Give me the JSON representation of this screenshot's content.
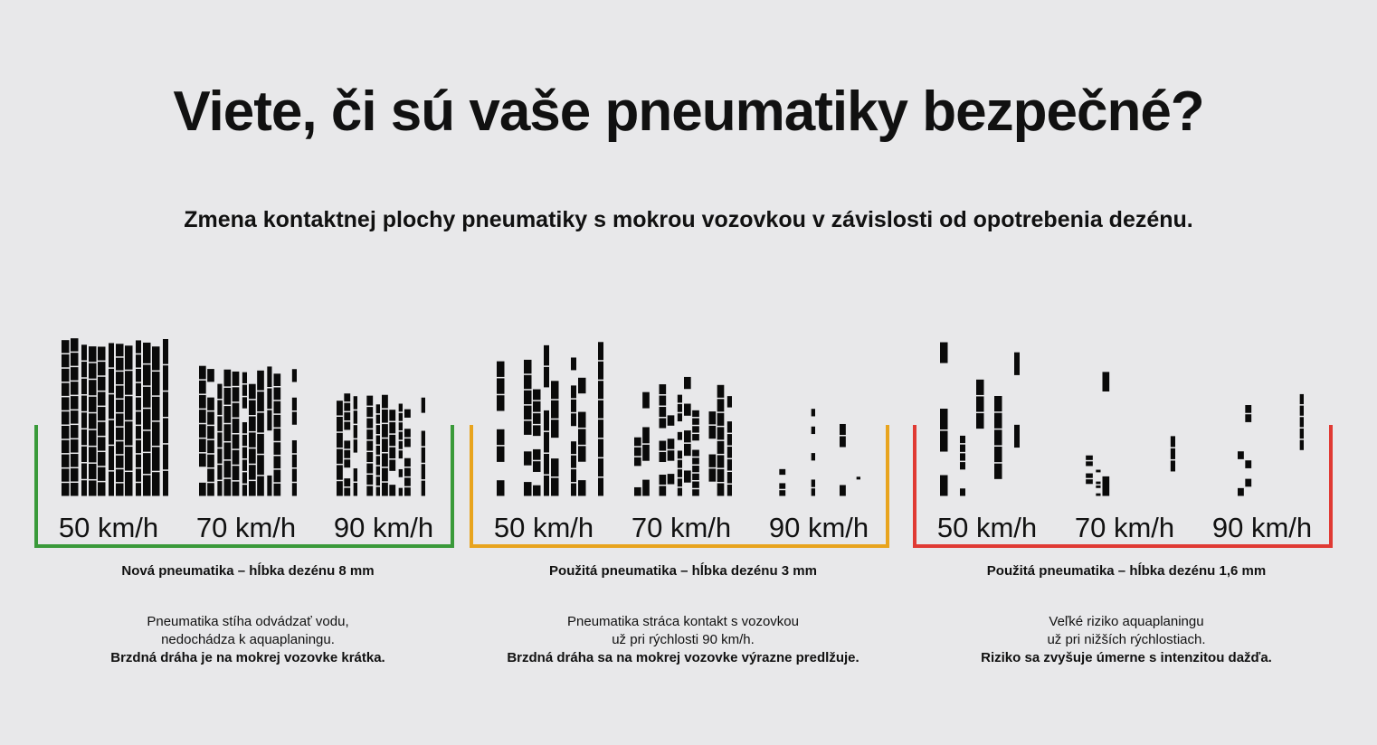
{
  "title": "Viete, či sú vaše pneumatiky bezpečné?",
  "subtitle": "Zmena kontaktnej plochy pneumatiky s mokrou vozovkou v závislosti od opotrebenia dezénu.",
  "panels": [
    {
      "color": "#3a9a3a",
      "wear_level": 0,
      "speeds": [
        "50 km/h",
        "70 km/h",
        "90 km/h"
      ],
      "caption": "Nová pneumatika – hĺbka dezénu 8 mm",
      "desc1": "Pneumatika stíha odvádzať vodu,",
      "desc2": "nedochádza k aquaplaningu.",
      "desc3": "Brzdná dráha je na mokrej vozovke krátka."
    },
    {
      "color": "#e8a41e",
      "wear_level": 1,
      "speeds": [
        "50 km/h",
        "70 km/h",
        "90 km/h"
      ],
      "caption": "Použitá pneumatika – hĺbka dezénu 3 mm",
      "desc1": "Pneumatika stráca kontakt s vozovkou",
      "desc2": "už pri rýchlosti 90 km/h.",
      "desc3": "Brzdná dráha sa na mokrej vozovke výrazne predlžuje."
    },
    {
      "color": "#e03a34",
      "wear_level": 2,
      "speeds": [
        "50 km/h",
        "70 km/h",
        "90 km/h"
      ],
      "caption": "Použitá pneumatika – hĺbka dezénu 1,6 mm",
      "desc1": "Veľké riziko aquaplaningu",
      "desc2": "už pri nižších rýchlostiach.",
      "desc3": "Riziko sa zvyšuje úmerne s intenzitou dažďa."
    }
  ]
}
